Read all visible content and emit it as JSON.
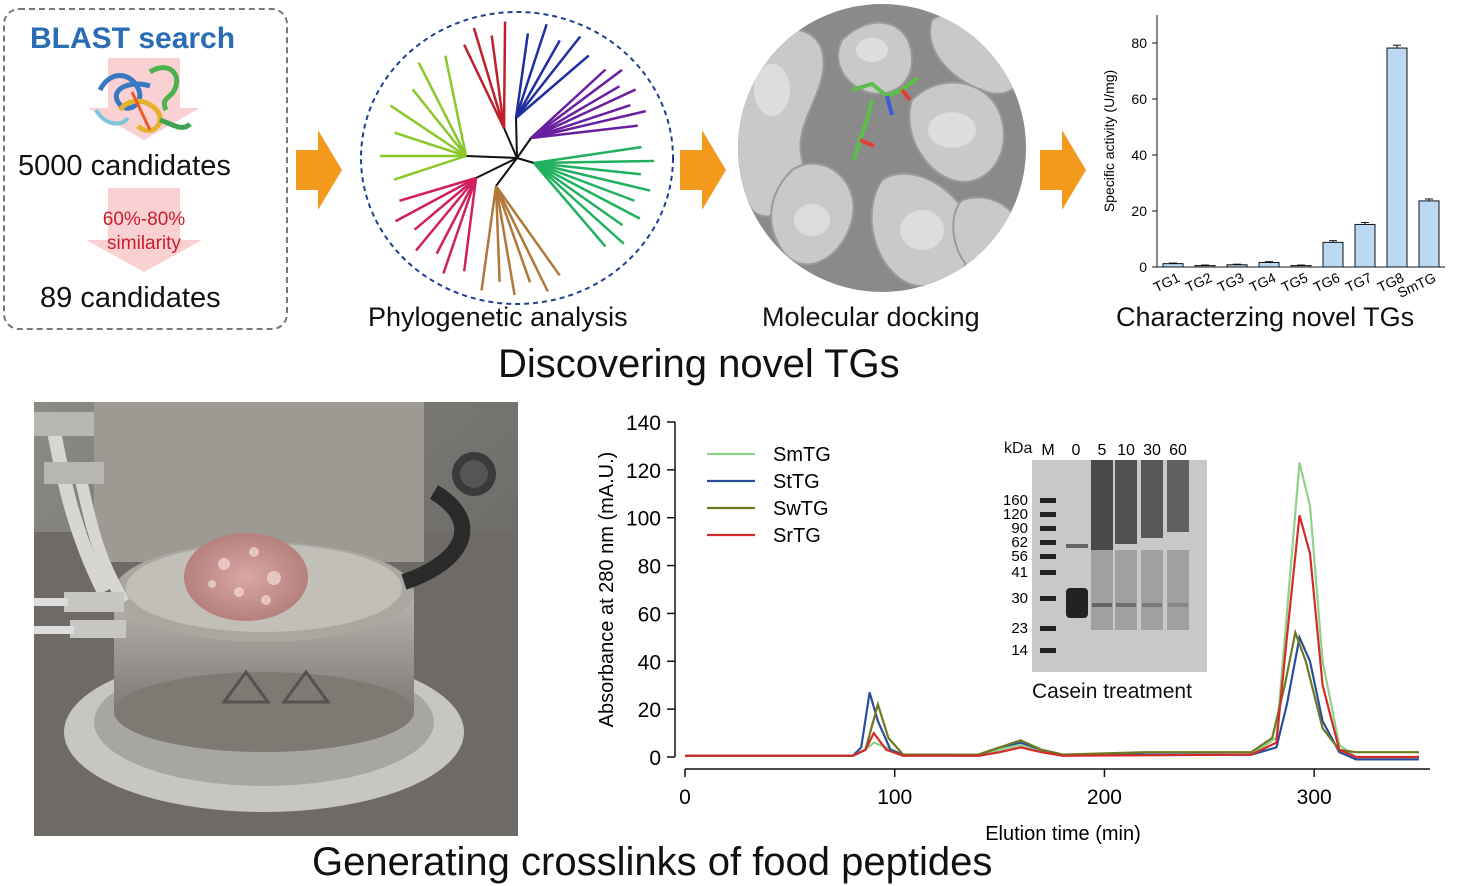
{
  "blast": {
    "title": "BLAST search",
    "candidates_start": "5000 candidates",
    "similarity": [
      "60%-80%",
      "similarity"
    ],
    "candidates_end": "89 candidates"
  },
  "stages": {
    "phylogenetic": "Phylogenetic analysis",
    "docking": "Molecular docking",
    "characterizing": "Characterzing novel TGs"
  },
  "titles": {
    "top": "Discovering novel TGs",
    "bottom": "Generating crosslinks of food peptides"
  },
  "colors": {
    "arrow": "#f39a1c",
    "blast_title": "#2a6db5",
    "similarity_text": "#c8202a",
    "bar_fill": "#bcd8f2"
  },
  "gel": {
    "unit_label": "kDa",
    "lanes": [
      "M",
      "0",
      "5",
      "10",
      "30",
      "60"
    ],
    "markers": [
      "160",
      "120",
      "90",
      "62",
      "56",
      "41",
      "30",
      "23",
      "14"
    ],
    "caption": "Casein treatment"
  },
  "chart_data": [
    {
      "type": "bar",
      "ylabel": "Specific activity (U/mg)",
      "categories": [
        "TG1",
        "TG2",
        "TG3",
        "TG4",
        "TG5",
        "TG6",
        "TG7",
        "TG8",
        "SmTG"
      ],
      "values": [
        1.2,
        0.5,
        0.8,
        1.6,
        0.5,
        8.8,
        15.2,
        78.2,
        23.6
      ],
      "errors": [
        0.2,
        0.2,
        0.2,
        0.3,
        0.2,
        0.6,
        0.7,
        1.0,
        0.7
      ],
      "ylim": [
        0,
        90
      ],
      "yticks": [
        0,
        20,
        40,
        60,
        80
      ]
    },
    {
      "type": "line",
      "xlabel": "Elution time (min)",
      "ylabel": "Absorbance at 280 nm (mA.U.)",
      "xlim": [
        0,
        360
      ],
      "ylim": [
        0,
        140
      ],
      "xticks": [
        0,
        100,
        200,
        300
      ],
      "yticks": [
        0,
        20,
        40,
        60,
        80,
        100,
        120,
        140
      ],
      "legend": "top-left",
      "series": [
        {
          "name": "SmTG",
          "color": "#8fd18a",
          "points": [
            [
              0,
              0.5
            ],
            [
              80,
              0.5
            ],
            [
              86,
              3
            ],
            [
              90,
              6
            ],
            [
              96,
              4
            ],
            [
              104,
              1
            ],
            [
              140,
              0.5
            ],
            [
              150,
              3
            ],
            [
              160,
              5
            ],
            [
              170,
              2
            ],
            [
              180,
              1
            ],
            [
              270,
              1
            ],
            [
              282,
              8
            ],
            [
              287,
              60
            ],
            [
              293,
              123
            ],
            [
              298,
              105
            ],
            [
              304,
              40
            ],
            [
              312,
              5
            ],
            [
              320,
              0
            ],
            [
              350,
              0
            ]
          ]
        },
        {
          "name": "StTG",
          "color": "#2a4f9a",
          "points": [
            [
              0,
              0.5
            ],
            [
              80,
              0.5
            ],
            [
              84,
              4
            ],
            [
              88,
              27
            ],
            [
              92,
              15
            ],
            [
              98,
              3
            ],
            [
              104,
              1
            ],
            [
              140,
              1
            ],
            [
              150,
              4
            ],
            [
              160,
              6
            ],
            [
              170,
              3
            ],
            [
              180,
              1
            ],
            [
              270,
              1
            ],
            [
              282,
              4
            ],
            [
              287,
              22
            ],
            [
              293,
              50
            ],
            [
              298,
              40
            ],
            [
              304,
              15
            ],
            [
              312,
              2
            ],
            [
              320,
              -1
            ],
            [
              350,
              -1
            ]
          ]
        },
        {
          "name": "SwTG",
          "color": "#6e7a22",
          "points": [
            [
              0,
              0.5
            ],
            [
              80,
              0.5
            ],
            [
              86,
              3
            ],
            [
              92,
              22
            ],
            [
              97,
              8
            ],
            [
              104,
              1
            ],
            [
              140,
              1
            ],
            [
              150,
              4
            ],
            [
              160,
              7
            ],
            [
              170,
              3
            ],
            [
              180,
              1
            ],
            [
              220,
              2
            ],
            [
              270,
              2
            ],
            [
              280,
              8
            ],
            [
              286,
              30
            ],
            [
              291,
              52
            ],
            [
              296,
              40
            ],
            [
              304,
              12
            ],
            [
              312,
              3
            ],
            [
              320,
              2
            ],
            [
              350,
              2
            ]
          ]
        },
        {
          "name": "SrTG",
          "color": "#d42a2a",
          "points": [
            [
              0,
              0.5
            ],
            [
              80,
              0.5
            ],
            [
              86,
              3
            ],
            [
              90,
              10
            ],
            [
              96,
              3
            ],
            [
              104,
              0.5
            ],
            [
              140,
              0.5
            ],
            [
              150,
              2
            ],
            [
              160,
              4
            ],
            [
              170,
              2
            ],
            [
              180,
              0.5
            ],
            [
              270,
              1
            ],
            [
              282,
              6
            ],
            [
              287,
              50
            ],
            [
              293,
              101
            ],
            [
              298,
              85
            ],
            [
              304,
              30
            ],
            [
              312,
              3
            ],
            [
              320,
              0
            ],
            [
              350,
              0
            ]
          ]
        }
      ]
    }
  ]
}
